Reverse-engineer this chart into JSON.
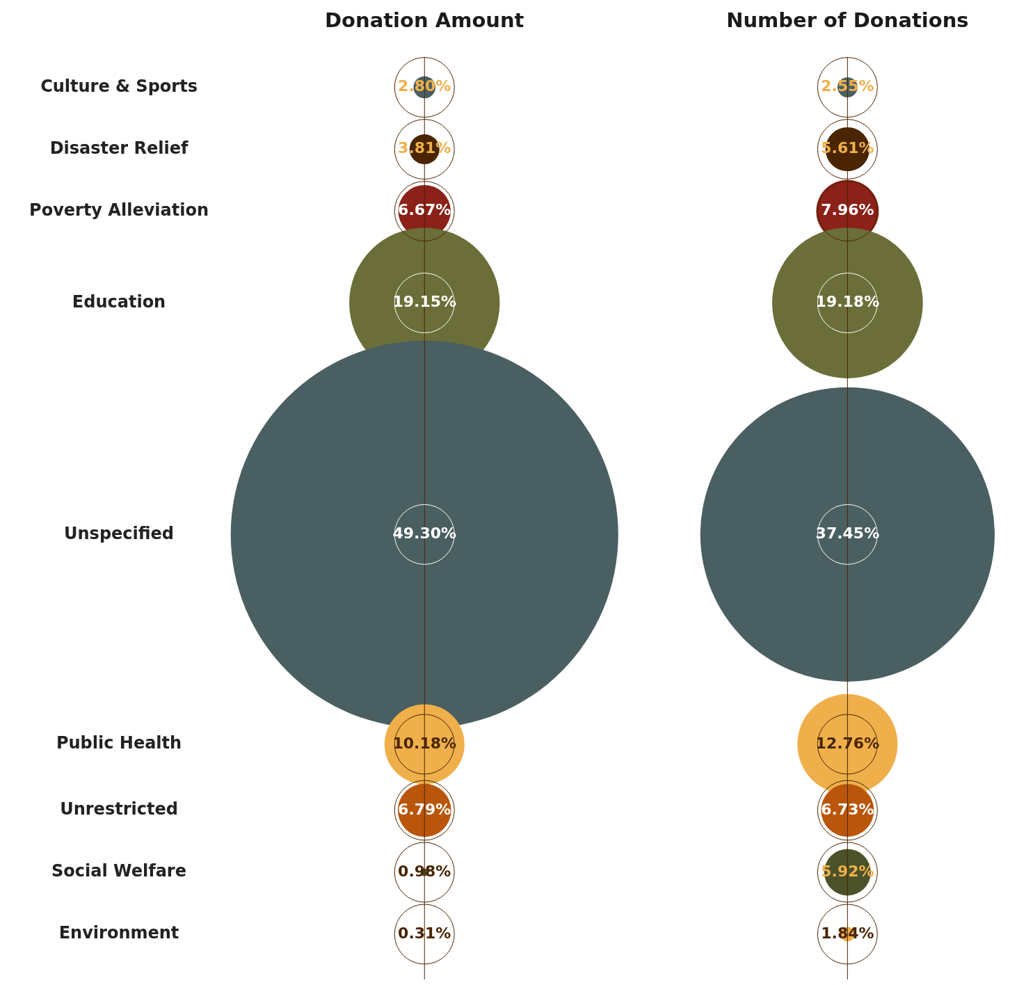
{
  "chart_data": {
    "type": "other",
    "categories": [
      "Culture & Sports",
      "Disaster Relief",
      "Poverty Alleviation",
      "Education",
      "Unspecified",
      "Public Health",
      "Unrestricted",
      "Social Welfare",
      "Environment"
    ],
    "series": [
      {
        "name": "Donation Amount",
        "values": [
          2.8,
          3.81,
          6.67,
          19.15,
          49.3,
          10.18,
          6.79,
          0.98,
          0.31
        ],
        "colors": [
          "#4a5f62",
          "#4a2500",
          "#8b2118",
          "#6b6e38",
          "#4a5f62",
          "#efb04b",
          "#b9560b",
          "#4b5129",
          "#efb04b"
        ],
        "value_labels": [
          "2.80%",
          "3.81%",
          "6.67%",
          "19.15%",
          "49.30%",
          "10.18%",
          "6.79%",
          "0.98%",
          "0.31%"
        ]
      },
      {
        "name": "Number of Donations",
        "values": [
          2.55,
          5.61,
          7.96,
          19.18,
          37.45,
          12.76,
          6.73,
          5.92,
          1.84
        ],
        "colors": [
          "#4a5f62",
          "#4a2500",
          "#8b2118",
          "#6b6e38",
          "#4a5f62",
          "#efb04b",
          "#b9560b",
          "#4b5129",
          "#efb04b"
        ],
        "value_labels": [
          "2.55%",
          "5.61%",
          "7.96%",
          "19.18%",
          "37.45%",
          "12.76%",
          "6.73%",
          "5.92%",
          "1.84%"
        ]
      }
    ]
  }
}
